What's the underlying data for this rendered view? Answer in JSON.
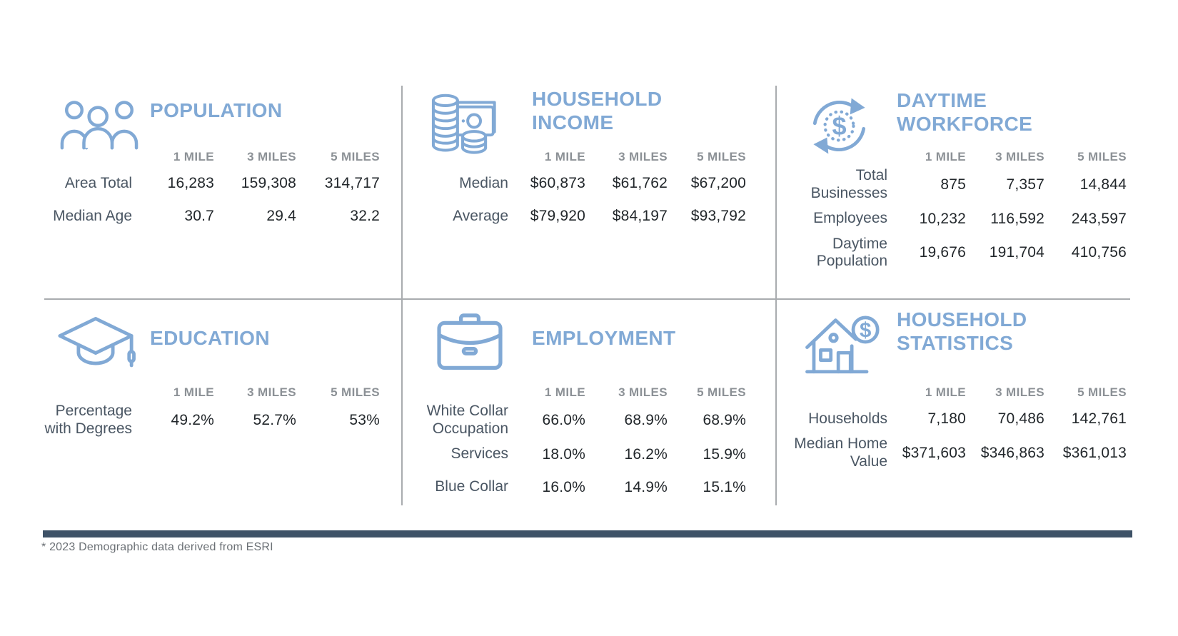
{
  "columns": [
    "1 MILE",
    "3 MILES",
    "5 MILES"
  ],
  "panels": [
    {
      "id": "population",
      "title": "POPULATION",
      "icon": "people-group-icon",
      "rows": [
        {
          "label": "Area Total",
          "values": [
            "16,283",
            "159,308",
            "314,717"
          ]
        },
        {
          "label": "Median Age",
          "values": [
            "30.7",
            "29.4",
            "32.2"
          ]
        }
      ]
    },
    {
      "id": "household-income",
      "title": "HOUSEHOLD INCOME",
      "icon": "coins-cash-icon",
      "rows": [
        {
          "label": "Median",
          "values": [
            "$60,873",
            "$61,762",
            "$67,200"
          ]
        },
        {
          "label": "Average",
          "values": [
            "$79,920",
            "$84,197",
            "$93,792"
          ]
        }
      ]
    },
    {
      "id": "daytime-workforce",
      "title": "DAYTIME WORKFORCE",
      "icon": "dollar-cycle-icon",
      "rows": [
        {
          "label": "Total Businesses",
          "values": [
            "875",
            "7,357",
            "14,844"
          ]
        },
        {
          "label": "Employees",
          "values": [
            "10,232",
            "116,592",
            "243,597"
          ]
        },
        {
          "label": "Daytime Population",
          "values": [
            "19,676",
            "191,704",
            "410,756"
          ]
        }
      ]
    },
    {
      "id": "education",
      "title": "EDUCATION",
      "icon": "graduation-cap-icon",
      "rows": [
        {
          "label": "Percentage with Degrees",
          "values": [
            "49.2%",
            "52.7%",
            "53%"
          ]
        }
      ]
    },
    {
      "id": "employment",
      "title": "EMPLOYMENT",
      "icon": "briefcase-icon",
      "rows": [
        {
          "label": "White Collar Occupation",
          "values": [
            "66.0%",
            "68.9%",
            "68.9%"
          ]
        },
        {
          "label": "Services",
          "values": [
            "18.0%",
            "16.2%",
            "15.9%"
          ]
        },
        {
          "label": "Blue Collar",
          "values": [
            "16.0%",
            "14.9%",
            "15.1%"
          ]
        }
      ]
    },
    {
      "id": "household-statistics",
      "title": "HOUSEHOLD STATISTICS",
      "icon": "house-dollar-icon",
      "rows": [
        {
          "label": "Households",
          "values": [
            "7,180",
            "70,486",
            "142,761"
          ]
        },
        {
          "label": "Median Home Value",
          "values": [
            "$371,603",
            "$346,863",
            "$361,013"
          ]
        }
      ]
    }
  ],
  "footnote": "* 2023 Demographic data derived from ESRI",
  "colors": {
    "accent": "#81a9d5",
    "label": "#4a5663",
    "value": "#22272b",
    "column_header": "#8c9196",
    "divider": "#a9acaf",
    "footer_bar": "#3e5267",
    "footnote": "#6b7075"
  }
}
